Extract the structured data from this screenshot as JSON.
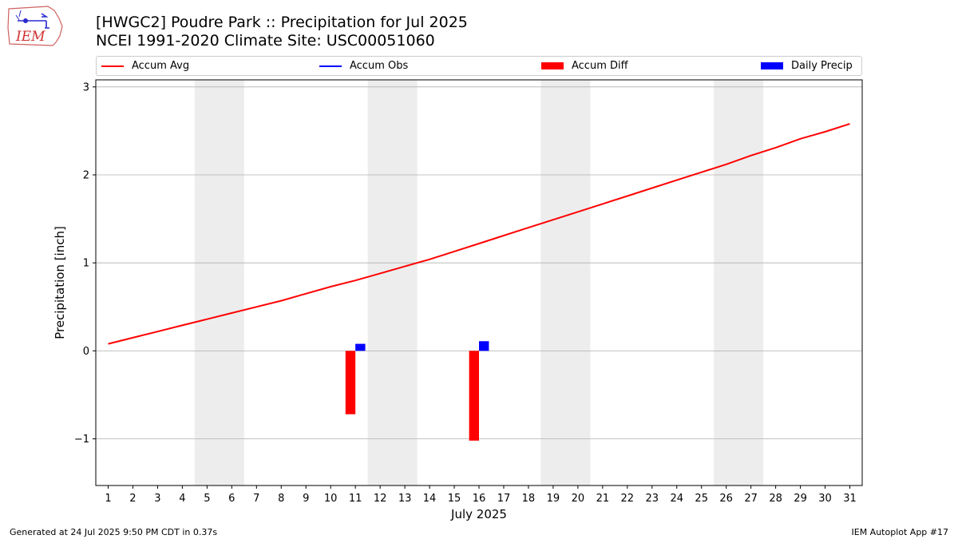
{
  "header": {
    "logo_text": "IEM",
    "title_line1": "[HWGC2] Poudre Park :: Precipitation for Jul 2025",
    "title_line2": "NCEI 1991-2020 Climate Site: USC00051060"
  },
  "legend": {
    "items": [
      {
        "label": "Accum Avg",
        "kind": "line",
        "color": "#ff0000"
      },
      {
        "label": "Accum Obs",
        "kind": "line",
        "color": "#0000ff"
      },
      {
        "label": "Accum Diff",
        "kind": "bar",
        "color": "#ff0000"
      },
      {
        "label": "Daily Precip",
        "kind": "bar",
        "color": "#0000ff"
      }
    ]
  },
  "chart_data": {
    "type": "line",
    "xlabel": "July 2025",
    "ylabel": "Precipitation [inch]",
    "xlim": [
      0.5,
      31.5
    ],
    "ylim": [
      -1.53,
      3.08
    ],
    "yticks": [
      -1,
      0,
      1,
      2,
      3
    ],
    "ytick_labels": [
      "−1",
      "0",
      "1",
      "2",
      "3"
    ],
    "xticks": [
      1,
      2,
      3,
      4,
      5,
      6,
      7,
      8,
      9,
      10,
      11,
      12,
      13,
      14,
      15,
      16,
      17,
      18,
      19,
      20,
      21,
      22,
      23,
      24,
      25,
      26,
      27,
      28,
      29,
      30,
      31
    ],
    "grid": "horizontal",
    "weekend_shading": [
      [
        4.5,
        6.5
      ],
      [
        11.5,
        13.5
      ],
      [
        18.5,
        20.5
      ],
      [
        25.5,
        27.5
      ]
    ],
    "accum_avg": {
      "name": "Accum Avg",
      "color": "#ff0000",
      "x": [
        1,
        2,
        3,
        4,
        5,
        6,
        7,
        8,
        9,
        10,
        11,
        12,
        13,
        14,
        15,
        16,
        17,
        18,
        19,
        20,
        21,
        22,
        23,
        24,
        25,
        26,
        27,
        28,
        29,
        30,
        31
      ],
      "y": [
        0.08,
        0.15,
        0.22,
        0.29,
        0.36,
        0.43,
        0.5,
        0.57,
        0.65,
        0.73,
        0.8,
        0.88,
        0.96,
        1.04,
        1.13,
        1.22,
        1.31,
        1.4,
        1.49,
        1.58,
        1.67,
        1.76,
        1.85,
        1.94,
        2.03,
        2.12,
        2.22,
        2.31,
        2.41,
        2.49,
        2.58
      ]
    },
    "accum_diff": {
      "name": "Accum Diff",
      "color": "#ff0000",
      "x": [
        11,
        16
      ],
      "y": [
        -0.72,
        -1.02
      ]
    },
    "daily_precip": {
      "name": "Daily Precip",
      "color": "#0000ff",
      "x": [
        11,
        16
      ],
      "y": [
        0.08,
        0.11
      ]
    }
  },
  "footer": {
    "left": "Generated at 24 Jul 2025 9:50 PM CDT in 0.37s",
    "right": "IEM Autoplot App #17"
  }
}
